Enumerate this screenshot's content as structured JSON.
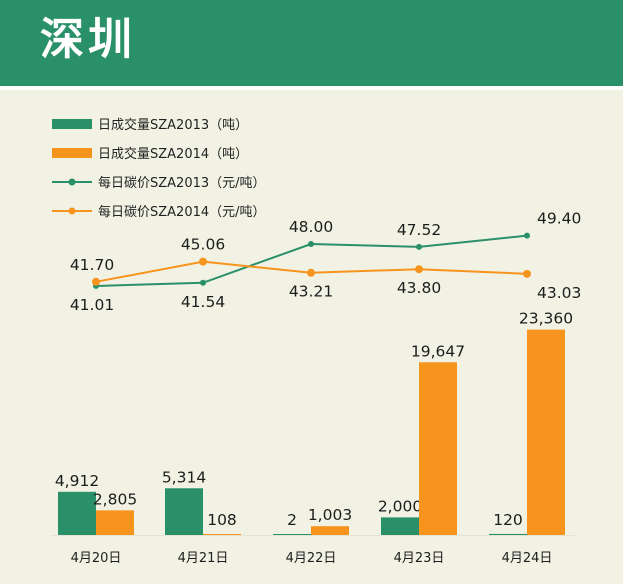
{
  "page": {
    "title": "深圳"
  },
  "colors": {
    "green": "#2a9069",
    "orange": "#f7941d",
    "header_bg": "#2a9069",
    "background": "#f2f2e4"
  },
  "chart_data": {
    "type": "bar+line",
    "categories": [
      "4月20日",
      "4月21日",
      "4月22日",
      "4月23日",
      "4月24日"
    ],
    "bar_series": [
      {
        "name": "日成交量SZA2013（吨）",
        "color": "#2a9069",
        "values": [
          4912,
          5314,
          2,
          2000,
          120
        ],
        "labels": [
          "4,912",
          "5,314",
          "2",
          "2,000",
          "120"
        ]
      },
      {
        "name": "日成交量SZA2014（吨）",
        "color": "#f7941d",
        "values": [
          2805,
          108,
          1003,
          19647,
          23360
        ],
        "labels": [
          "2,805",
          "108",
          "1,003",
          "19,647",
          "23,360"
        ]
      }
    ],
    "line_series": [
      {
        "name": "每日碳价SZA2013（元/吨）",
        "color": "#2a9069",
        "values": [
          41.01,
          41.54,
          48.0,
          47.52,
          49.4
        ],
        "labels": [
          "41.01",
          "41.54",
          "48.00",
          "47.52",
          "49.40"
        ]
      },
      {
        "name": "每日碳价SZA2014（元/吨）",
        "color": "#f7941d",
        "values": [
          41.7,
          45.06,
          43.21,
          43.8,
          43.03
        ],
        "labels": [
          "41.70",
          "45.06",
          "43.21",
          "43.80",
          "43.03"
        ]
      }
    ],
    "legend_position": "top-left",
    "grid": false
  }
}
